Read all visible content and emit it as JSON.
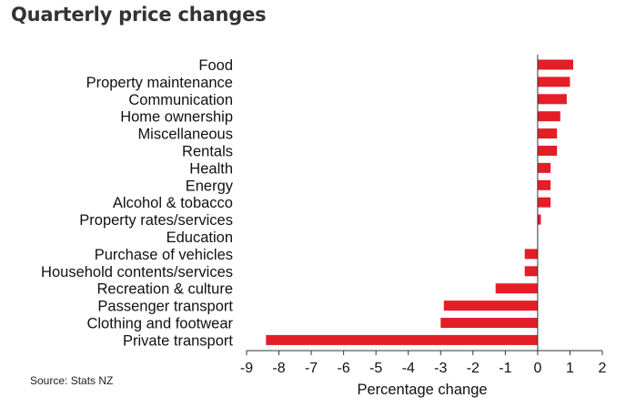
{
  "chart_data": {
    "type": "bar",
    "orientation": "horizontal",
    "title": "Quarterly price changes",
    "source": "Source: Stats NZ",
    "xlabel": "Percentage change",
    "ylabel": "",
    "xlim": [
      -9,
      2
    ],
    "xticks": [
      -9,
      -8,
      -7,
      -6,
      -5,
      -4,
      -3,
      -2,
      -1,
      0,
      1,
      2
    ],
    "categories": [
      "Food",
      "Property maintenance",
      "Communication",
      "Home ownership",
      "Miscellaneous",
      "Rentals",
      "Health",
      "Energy",
      "Alcohol & tobacco",
      "Property rates/services",
      "Education",
      "Purchase of vehicles",
      "Household contents/services",
      "Recreation & culture",
      "Passenger transport",
      "Clothing and footwear",
      "Private transport"
    ],
    "values": [
      1.1,
      1.0,
      0.9,
      0.7,
      0.6,
      0.6,
      0.4,
      0.4,
      0.4,
      0.1,
      0.0,
      -0.4,
      -0.4,
      -1.3,
      -2.9,
      -3.0,
      -8.4
    ],
    "bar_color": "#e31e26",
    "grid": false,
    "legend": "none"
  }
}
